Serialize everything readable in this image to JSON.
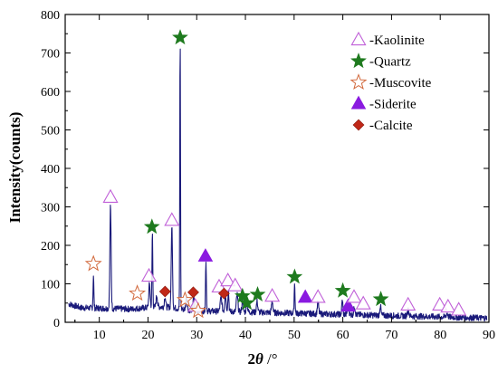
{
  "chart_data": {
    "type": "line",
    "title": "",
    "xlabel_prefix": "2",
    "xlabel_symbol": "θ",
    "xlabel_suffix": " /°",
    "ylabel": "Intensity(counts)",
    "xlim": [
      3,
      90
    ],
    "ylim": [
      0,
      800
    ],
    "x_ticks": [
      10,
      20,
      30,
      40,
      50,
      60,
      70,
      80,
      90
    ],
    "y_ticks": [
      0,
      100,
      200,
      300,
      400,
      500,
      600,
      700,
      800
    ],
    "grid": false,
    "legend_position": "top-right",
    "series": [
      {
        "type": "line",
        "color": "#1a1a7a",
        "peaks": [
          {
            "x": 8.8,
            "y": 85,
            "w": 0.12
          },
          {
            "x": 12.3,
            "y": 265,
            "w": 0.18
          },
          {
            "x": 20.3,
            "y": 60,
            "w": 0.2
          },
          {
            "x": 20.9,
            "y": 195,
            "w": 0.12
          },
          {
            "x": 21.8,
            "y": 30,
            "w": 0.2
          },
          {
            "x": 23.5,
            "y": 28,
            "w": 0.18
          },
          {
            "x": 24.9,
            "y": 215,
            "w": 0.18
          },
          {
            "x": 26.6,
            "y": 705,
            "w": 0.1
          },
          {
            "x": 27.9,
            "y": 32,
            "w": 0.2
          },
          {
            "x": 29.4,
            "y": 38,
            "w": 0.18
          },
          {
            "x": 31.9,
            "y": 125,
            "w": 0.13
          },
          {
            "x": 35.0,
            "y": 35,
            "w": 0.25
          },
          {
            "x": 35.9,
            "y": 45,
            "w": 0.2
          },
          {
            "x": 36.5,
            "y": 55,
            "w": 0.15
          },
          {
            "x": 38.3,
            "y": 45,
            "w": 0.22
          },
          {
            "x": 39.4,
            "y": 30,
            "w": 0.18
          },
          {
            "x": 40.3,
            "y": 25,
            "w": 0.18
          },
          {
            "x": 42.4,
            "y": 28,
            "w": 0.2
          },
          {
            "x": 45.5,
            "y": 30,
            "w": 0.2
          },
          {
            "x": 50.1,
            "y": 78,
            "w": 0.12
          },
          {
            "x": 54.9,
            "y": 30,
            "w": 0.2
          },
          {
            "x": 59.9,
            "y": 38,
            "w": 0.15
          },
          {
            "x": 61.1,
            "y": 30,
            "w": 0.2
          },
          {
            "x": 62.4,
            "y": 22,
            "w": 0.2
          },
          {
            "x": 67.7,
            "y": 25,
            "w": 0.18
          },
          {
            "x": 73.4,
            "y": 15,
            "w": 0.25
          },
          {
            "x": 81.4,
            "y": 10,
            "w": 0.25
          }
        ]
      }
    ],
    "legend": [
      {
        "label": "-Kaolinite",
        "symbol": "triangle-open",
        "color": "#c060d8"
      },
      {
        "label": "-Quartz",
        "symbol": "star-filled",
        "color": "#1e7a1e"
      },
      {
        "label": "-Muscovite",
        "symbol": "star-open",
        "color": "#d2693c"
      },
      {
        "label": "-Siderite",
        "symbol": "triangle-filled",
        "color": "#8a1ae0"
      },
      {
        "label": "-Calcite",
        "symbol": "diamond-filled",
        "color": "#c02818"
      }
    ],
    "markers": [
      {
        "type": "muscovite",
        "x": 8.8,
        "y": 152
      },
      {
        "type": "kaolinite",
        "x": 12.3,
        "y": 325
      },
      {
        "type": "muscovite",
        "x": 17.8,
        "y": 75
      },
      {
        "type": "kaolinite",
        "x": 20.2,
        "y": 120
      },
      {
        "type": "quartz",
        "x": 20.8,
        "y": 248
      },
      {
        "type": "calcite",
        "x": 23.5,
        "y": 80
      },
      {
        "type": "kaolinite",
        "x": 24.9,
        "y": 265
      },
      {
        "type": "quartz",
        "x": 26.6,
        "y": 740
      },
      {
        "type": "muscovite",
        "x": 27.6,
        "y": 58
      },
      {
        "type": "calcite",
        "x": 29.3,
        "y": 78
      },
      {
        "type": "kaolinite",
        "x": 29.7,
        "y": 42
      },
      {
        "type": "muscovite",
        "x": 30.3,
        "y": 30
      },
      {
        "type": "siderite",
        "x": 31.8,
        "y": 172
      },
      {
        "type": "kaolinite",
        "x": 34.6,
        "y": 92
      },
      {
        "type": "calcite",
        "x": 35.6,
        "y": 75
      },
      {
        "type": "kaolinite",
        "x": 36.4,
        "y": 108
      },
      {
        "type": "kaolinite",
        "x": 37.9,
        "y": 95
      },
      {
        "type": "quartz",
        "x": 39.4,
        "y": 68
      },
      {
        "type": "quartz",
        "x": 40.3,
        "y": 50
      },
      {
        "type": "quartz",
        "x": 42.5,
        "y": 72
      },
      {
        "type": "kaolinite",
        "x": 45.5,
        "y": 68
      },
      {
        "type": "quartz",
        "x": 50.1,
        "y": 118
      },
      {
        "type": "siderite",
        "x": 52.3,
        "y": 65
      },
      {
        "type": "kaolinite",
        "x": 54.9,
        "y": 65
      },
      {
        "type": "quartz",
        "x": 60.0,
        "y": 82
      },
      {
        "type": "siderite",
        "x": 61.1,
        "y": 42
      },
      {
        "type": "kaolinite",
        "x": 62.3,
        "y": 65
      },
      {
        "type": "kaolinite",
        "x": 64.2,
        "y": 48
      },
      {
        "type": "quartz",
        "x": 67.8,
        "y": 60
      },
      {
        "type": "kaolinite",
        "x": 73.4,
        "y": 45
      },
      {
        "type": "kaolinite",
        "x": 79.9,
        "y": 45
      },
      {
        "type": "kaolinite",
        "x": 81.6,
        "y": 40
      },
      {
        "type": "kaolinite",
        "x": 83.8,
        "y": 32
      }
    ]
  }
}
